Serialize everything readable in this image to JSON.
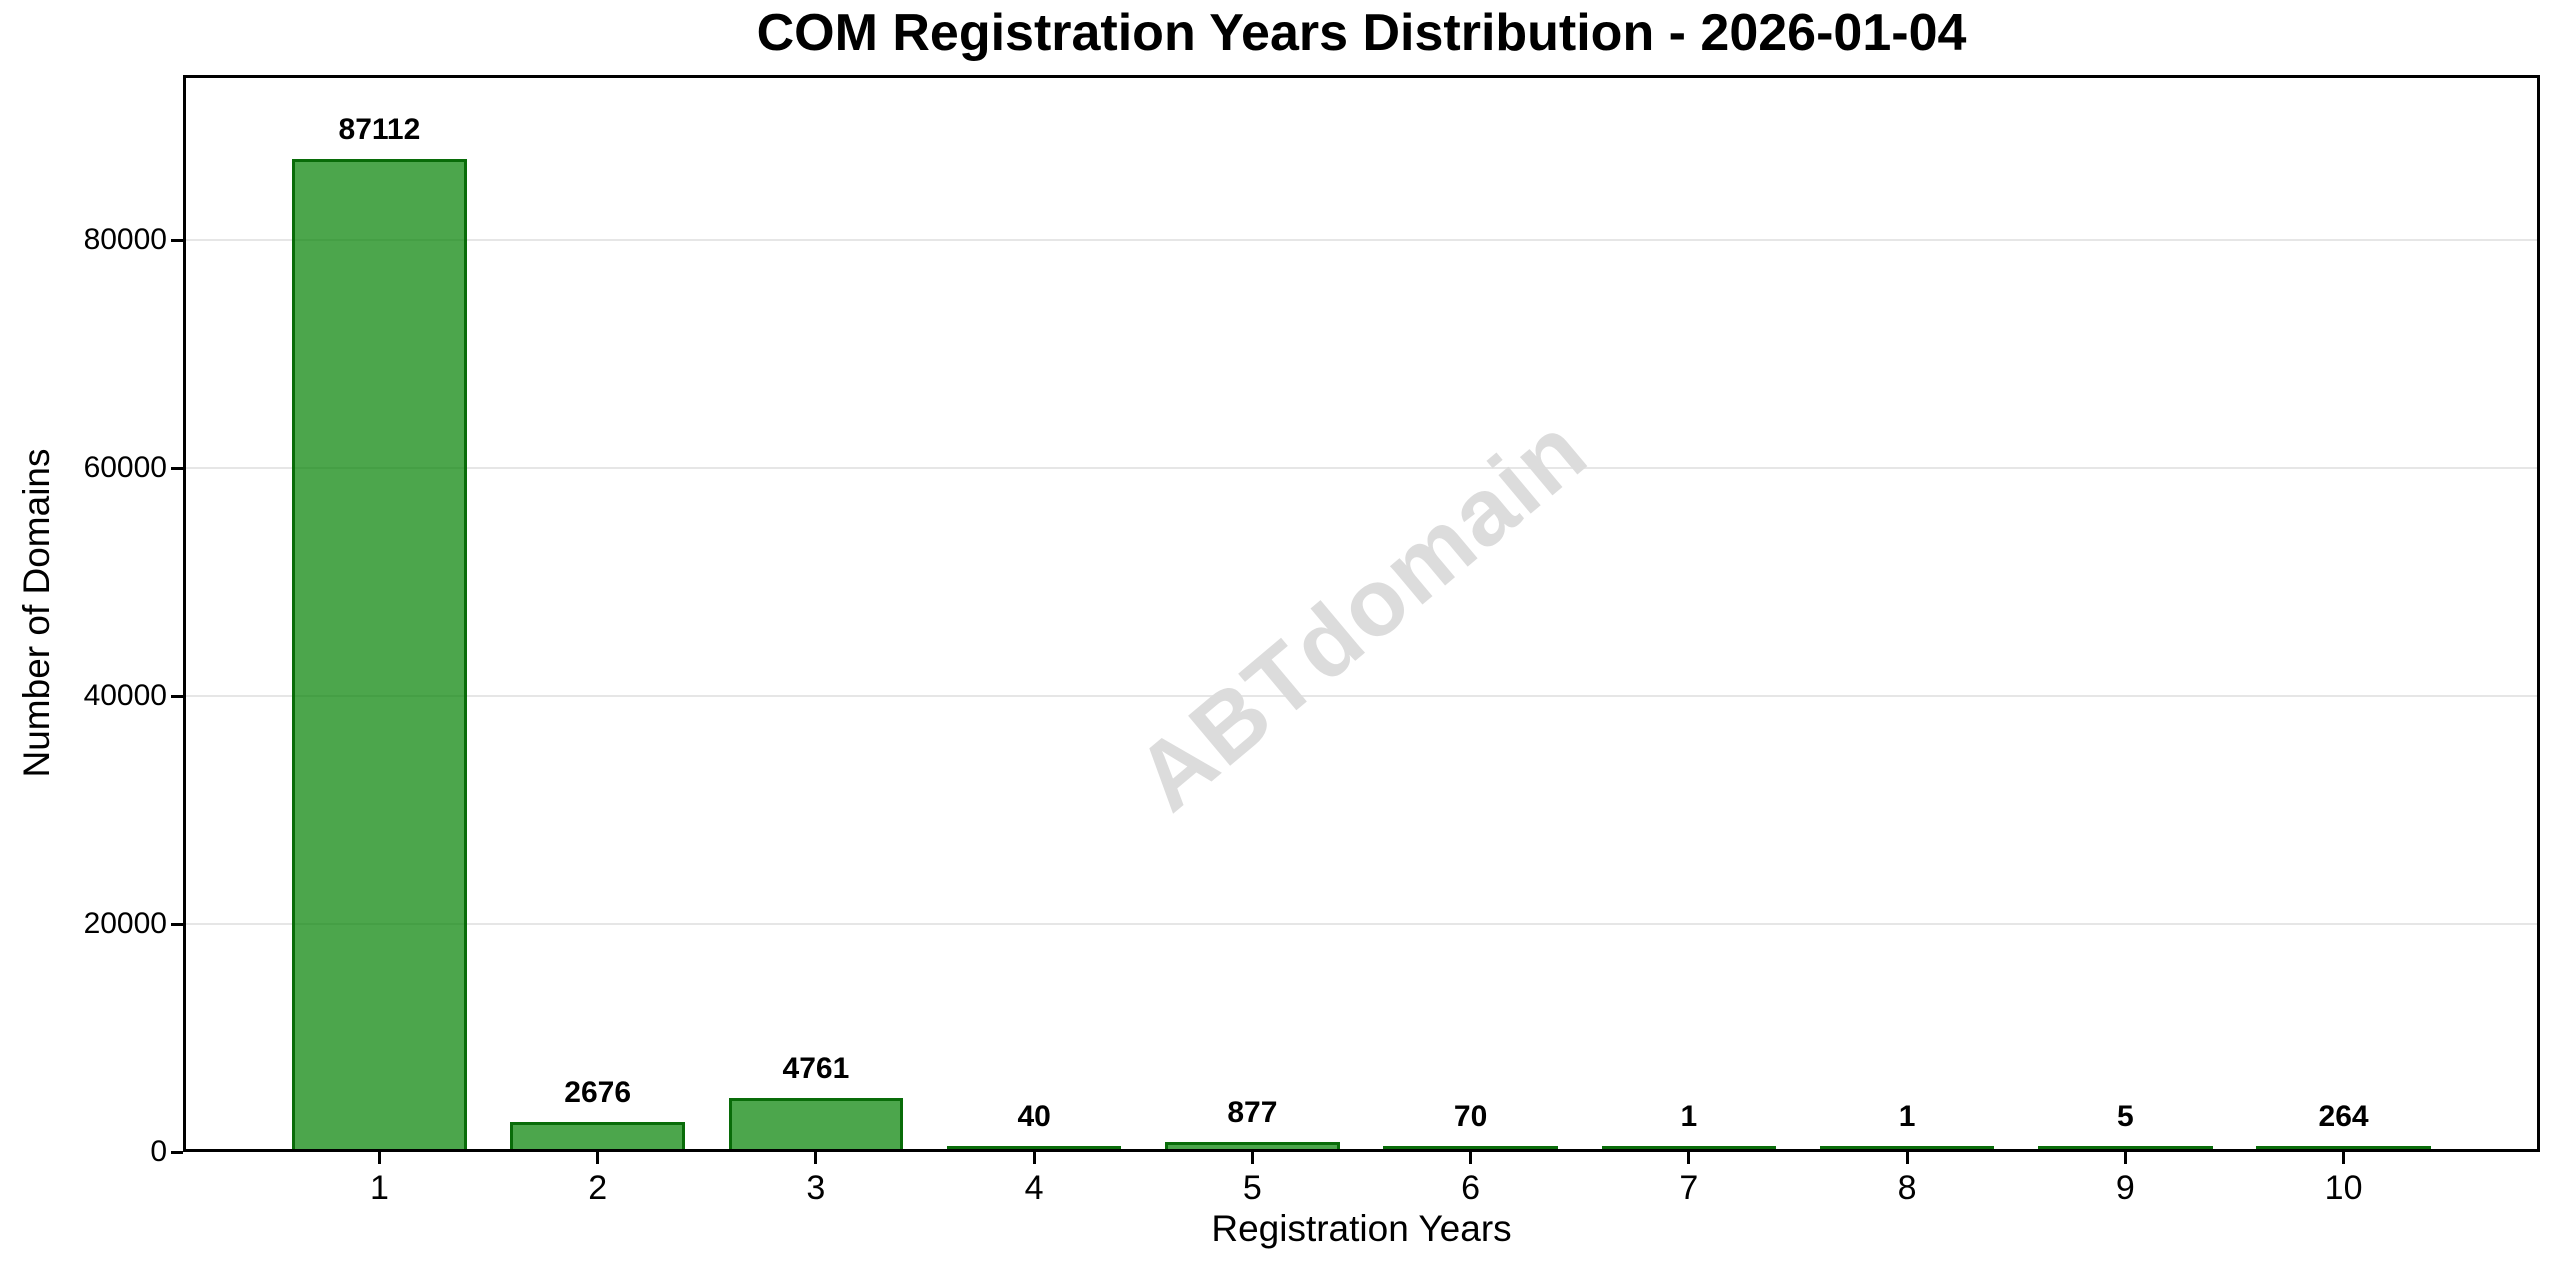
{
  "chart_data": {
    "type": "bar",
    "title": "COM Registration Years Distribution - 2026-01-04",
    "xlabel": "Registration Years",
    "ylabel": "Number of Domains",
    "categories": [
      "1",
      "2",
      "3",
      "4",
      "5",
      "6",
      "7",
      "8",
      "9",
      "10"
    ],
    "values": [
      87112,
      2676,
      4761,
      40,
      877,
      70,
      1,
      1,
      5,
      264
    ],
    "value_labels": [
      "87112",
      "2676",
      "4761",
      "40",
      "877",
      "70",
      "1",
      "1",
      "5",
      "264"
    ],
    "yticks": [
      0,
      20000,
      40000,
      60000,
      80000
    ],
    "ytick_labels": [
      "0",
      "20000",
      "40000",
      "60000",
      "80000"
    ],
    "ylim": [
      0,
      94500
    ],
    "xlim": [
      -0.9,
      9.9
    ],
    "bar_width_fraction": 0.8,
    "grid": "horizontal",
    "legend": "none",
    "bar_fill_color": "rgba(0,128,0,0.7)",
    "bar_edge_color": "rgba(0,100,0,0.88)",
    "grid_color": "#e6e6e6",
    "axis_color": "#000000",
    "text_color": "#000000"
  },
  "watermark": {
    "text": "ABTdomain",
    "color": "#dcdcdc"
  }
}
